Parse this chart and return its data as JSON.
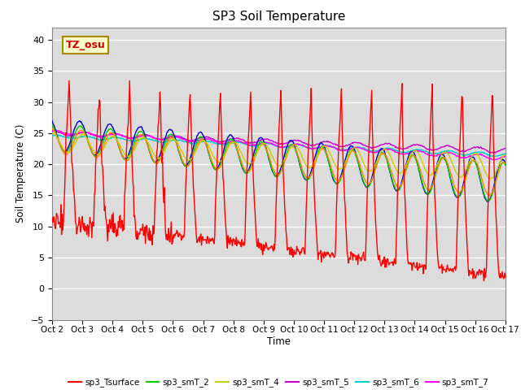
{
  "title": "SP3 Soil Temperature",
  "ylabel": "Soil Temperature (C)",
  "xlabel": "Time",
  "annotation": "TZ_osu",
  "ylim": [
    -5,
    42
  ],
  "yticks": [
    -5,
    0,
    5,
    10,
    15,
    20,
    25,
    30,
    35,
    40
  ],
  "xtick_labels": [
    "Oct 2",
    "Oct 3",
    "Oct 4",
    "Oct 5",
    "Oct 6",
    "Oct 7",
    "Oct 8",
    "Oct 9",
    "Oct 10",
    "Oct 11",
    "Oct 12",
    "Oct 13",
    "Oct 14",
    "Oct 15",
    "Oct 16",
    "Oct 17"
  ],
  "series_colors": {
    "sp3_Tsurface": "#ff0000",
    "sp3_smT_1": "#0000cc",
    "sp3_smT_2": "#00cc00",
    "sp3_smT_3": "#ff8800",
    "sp3_smT_4": "#cccc00",
    "sp3_smT_5": "#cc00cc",
    "sp3_smT_6": "#00cccc",
    "sp3_smT_7": "#ff00ff"
  }
}
